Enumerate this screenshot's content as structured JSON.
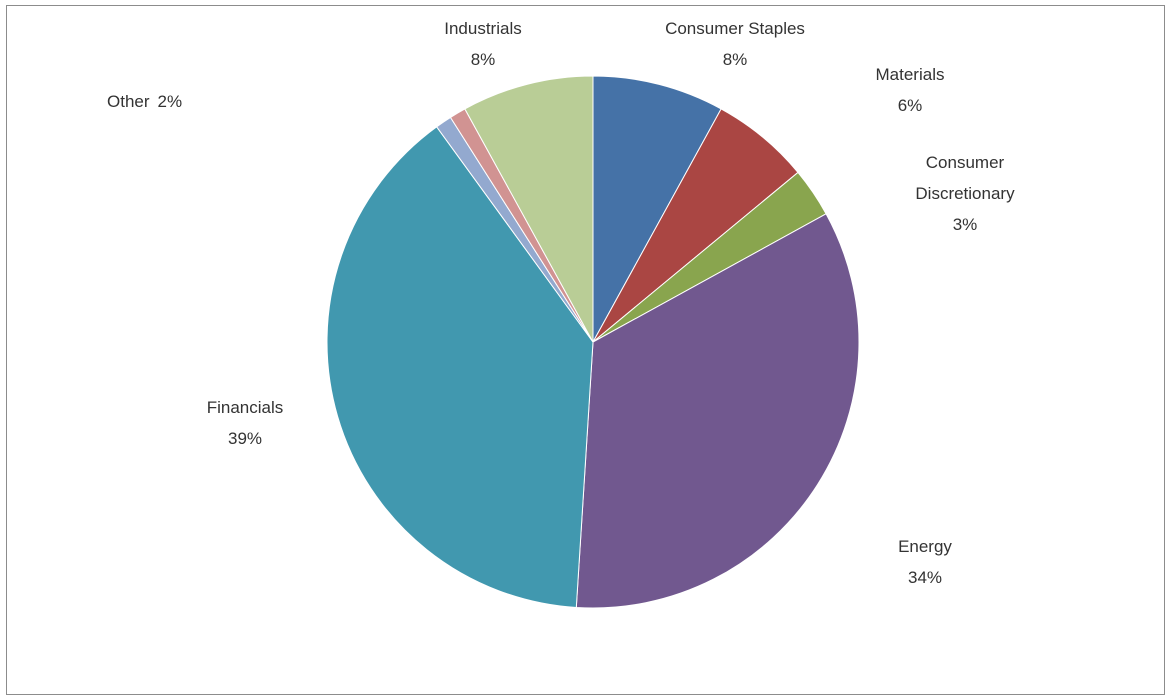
{
  "chart_data": {
    "type": "pie",
    "title": "",
    "slices": [
      {
        "name": "Consumer Staples",
        "value": 8,
        "label": "8%",
        "color": "#4572a7"
      },
      {
        "name": "Materials",
        "value": 6,
        "label": "6%",
        "color": "#aa4643"
      },
      {
        "name": "Consumer Discretionary",
        "value": 3,
        "label": "3%",
        "color": "#89a54e"
      },
      {
        "name": "Energy",
        "value": 34,
        "label": "34%",
        "color": "#71588f"
      },
      {
        "name": "Financials",
        "value": 39,
        "label": "39%",
        "color": "#4198af"
      },
      {
        "name": "Other",
        "value": 2,
        "label": "2%",
        "color": "#93a9cf",
        "sub_colors": [
          "#93a9cf",
          "#d19392"
        ]
      },
      {
        "name": "Industrials",
        "value": 8,
        "label": "8%",
        "color": "#b9cd96"
      }
    ],
    "legend": "none",
    "start_angle": "12 o'clock, clockwise"
  }
}
